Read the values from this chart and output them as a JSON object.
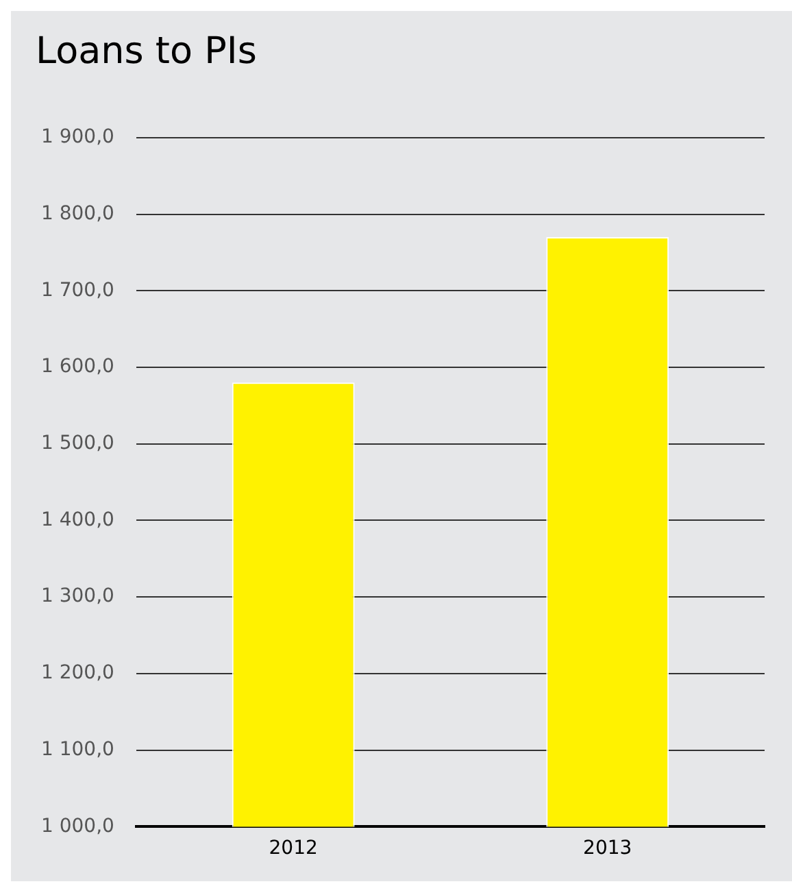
{
  "chart_data": {
    "type": "bar",
    "title": "Loans to PIs",
    "categories": [
      "2012",
      "2013"
    ],
    "values": [
      1580,
      1770
    ],
    "color": "#fff200",
    "ylim": [
      1000,
      1900
    ],
    "yticks": [
      {
        "value": 1000,
        "label": "1 000,0"
      },
      {
        "value": 1100,
        "label": "1 100,0"
      },
      {
        "value": 1200,
        "label": "1 200,0"
      },
      {
        "value": 1300,
        "label": "1 300,0"
      },
      {
        "value": 1400,
        "label": "1 400,0"
      },
      {
        "value": 1500,
        "label": "1 500,0"
      },
      {
        "value": 1600,
        "label": "1 600,0"
      },
      {
        "value": 1700,
        "label": "1 700,0"
      },
      {
        "value": 1800,
        "label": "1 800,0"
      },
      {
        "value": 1900,
        "label": "1 900,0"
      }
    ],
    "grid": "y",
    "legend": false
  }
}
